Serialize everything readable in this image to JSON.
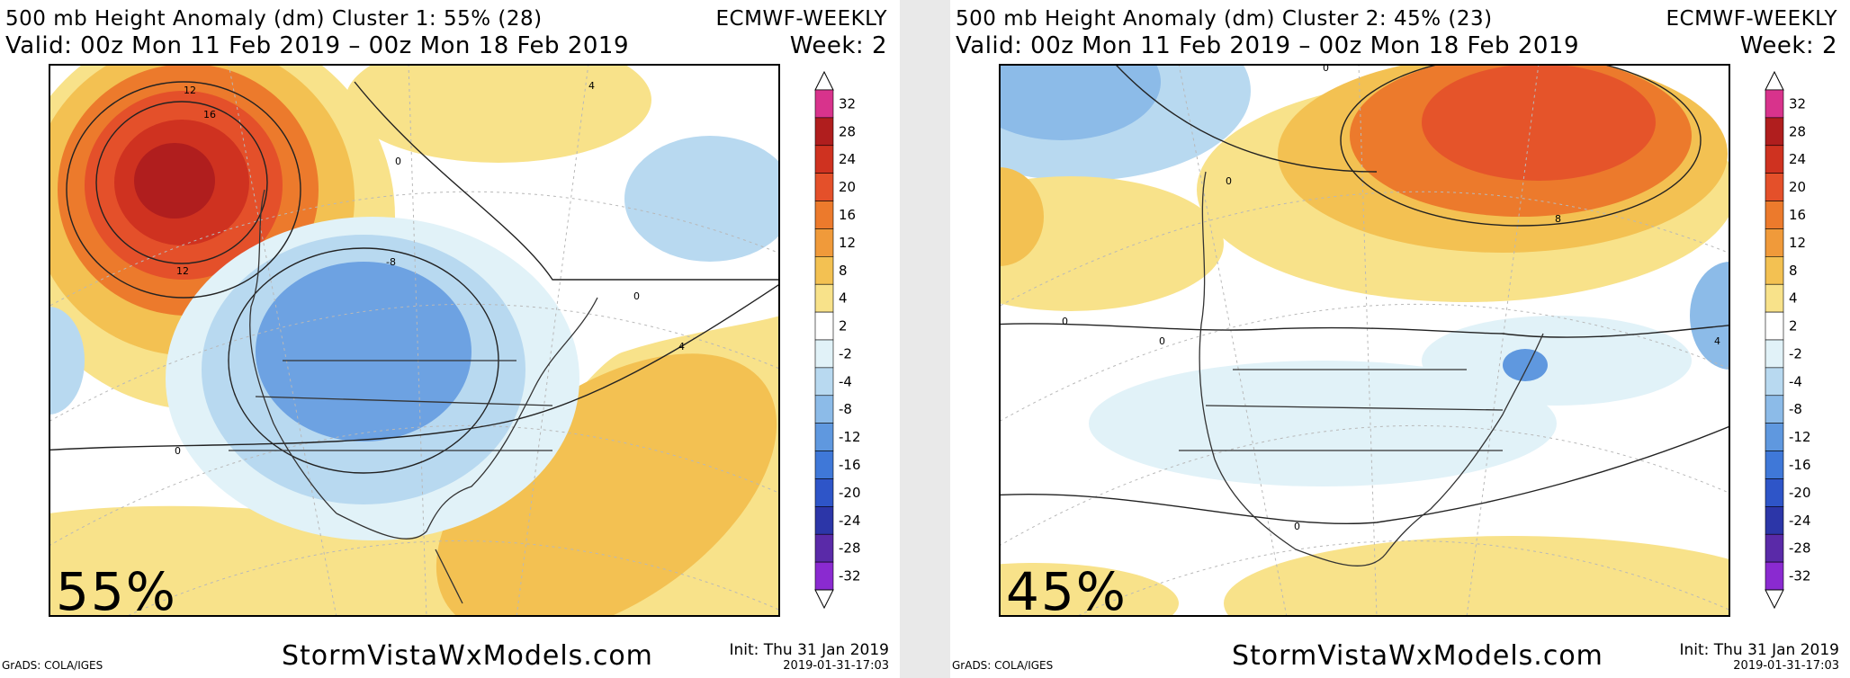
{
  "panels": [
    {
      "title_line1": "500 mb Height Anomaly (dm) Cluster 1: 55% (28)",
      "title_line2": "Valid: 00z Mon 11 Feb 2019 – 00z Mon 18 Feb 2019",
      "source": "ECMWF-WEEKLY",
      "week": "Week: 2",
      "percent_label": "55%",
      "contour_labels": [
        "12",
        "16",
        "12",
        "0",
        "4",
        "-8",
        "0",
        "4",
        "0"
      ],
      "footer_source": "GrADS: COLA/IGES",
      "watermark": "StormVistaWxModels.com",
      "init": "Init: Thu 31 Jan 2019",
      "timestamp": "2019-01-31-17:03"
    },
    {
      "title_line1": "500 mb Height Anomaly (dm) Cluster 2: 45% (23)",
      "title_line2": "Valid: 00z Mon 11 Feb 2019 – 00z Mon 18 Feb 2019",
      "source": "ECMWF-WEEKLY",
      "week": "Week: 2",
      "percent_label": "45%",
      "contour_labels": [
        "0",
        "0",
        "8",
        "0",
        "0",
        "4",
        "0"
      ],
      "footer_source": "GrADS: COLA/IGES",
      "watermark": "StormVistaWxModels.com",
      "init": "Init: Thu 31 Jan 2019",
      "timestamp": "2019-01-31-17:03"
    }
  ],
  "colorbar": {
    "labels": [
      "32",
      "28",
      "24",
      "20",
      "16",
      "12",
      "8",
      "4",
      "2",
      "-2",
      "-4",
      "-8",
      "-12",
      "-16",
      "-20",
      "-24",
      "-28",
      "-32"
    ],
    "colors": [
      "#d8338c",
      "#b01e1e",
      "#cf3220",
      "#e4502a",
      "#ec7a2c",
      "#f09a3a",
      "#f3c152",
      "#f8e28a",
      "#ffffff",
      "#e1f2f8",
      "#b8d9f0",
      "#8cbbe8",
      "#5f98df",
      "#3f78d8",
      "#2e55c8",
      "#2c36a8",
      "#5a2aa8",
      "#8a2ad0"
    ]
  }
}
